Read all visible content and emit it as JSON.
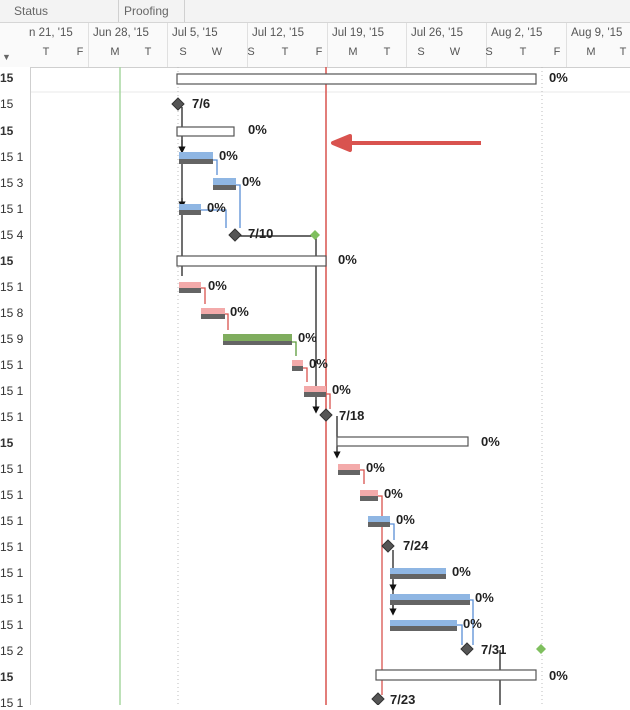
{
  "header": {
    "columns": [
      "Status",
      "Proofing"
    ]
  },
  "timescale": {
    "weeks": [
      "n 21, '15",
      "Jun 28, '15",
      "Jul 5, '15",
      "Jul 12, '15",
      "Jul 19, '15",
      "Jul 26, '15",
      "Aug 2, '15",
      "Aug 9, '15"
    ],
    "days": [
      "T",
      "F",
      "M",
      "T",
      "S",
      "W",
      "S",
      "T",
      "F",
      "M",
      "T",
      "S",
      "W",
      "S",
      "T",
      "F",
      "M",
      "T"
    ]
  },
  "rows": [
    {
      "id": "15",
      "bold": true
    },
    {
      "id": "15",
      "bold": false
    },
    {
      "id": "15",
      "bold": true
    },
    {
      "id": "15 1",
      "bold": false
    },
    {
      "id": "15 3",
      "bold": false
    },
    {
      "id": "15 1",
      "bold": false
    },
    {
      "id": "15 4",
      "bold": false
    },
    {
      "id": "15",
      "bold": true
    },
    {
      "id": "15 1",
      "bold": false
    },
    {
      "id": "15 8",
      "bold": false
    },
    {
      "id": "15 9",
      "bold": false
    },
    {
      "id": "15 1",
      "bold": false
    },
    {
      "id": "15 1",
      "bold": false
    },
    {
      "id": "15 1",
      "bold": false
    },
    {
      "id": "15",
      "bold": true
    },
    {
      "id": "15 1",
      "bold": false
    },
    {
      "id": "15 1",
      "bold": false
    },
    {
      "id": "15 1",
      "bold": false
    },
    {
      "id": "15 1",
      "bold": false
    },
    {
      "id": "15 1",
      "bold": false
    },
    {
      "id": "15 1",
      "bold": false
    },
    {
      "id": "15 1",
      "bold": false
    },
    {
      "id": "15 2",
      "bold": false
    },
    {
      "id": "15",
      "bold": true
    },
    {
      "id": "15 1",
      "bold": false
    }
  ],
  "labels": {
    "summary_top": "0%",
    "m1": "7/6",
    "summary1": "0%",
    "t1": "0%",
    "t2": "0%",
    "t3": "0%",
    "m2": "7/10",
    "summary2": "0%",
    "t4": "0%",
    "t5": "0%",
    "t6": "0%",
    "t7": "0%",
    "t8": "0%",
    "m3": "7/18",
    "summary3": "0%",
    "t9": "0%",
    "t10": "0%",
    "t11": "0%",
    "m4": "7/24",
    "t12": "0%",
    "t13": "0%",
    "t14": "0%",
    "m5": "7/31",
    "summary4": "0%",
    "m6": "7/23"
  },
  "colors": {
    "progress": "#646464",
    "blue": "#8fb6e3",
    "pink": "#f3aaaa",
    "green": "#7fad5e",
    "today_line": "#d9534f",
    "arrow": "#d9534f"
  }
}
